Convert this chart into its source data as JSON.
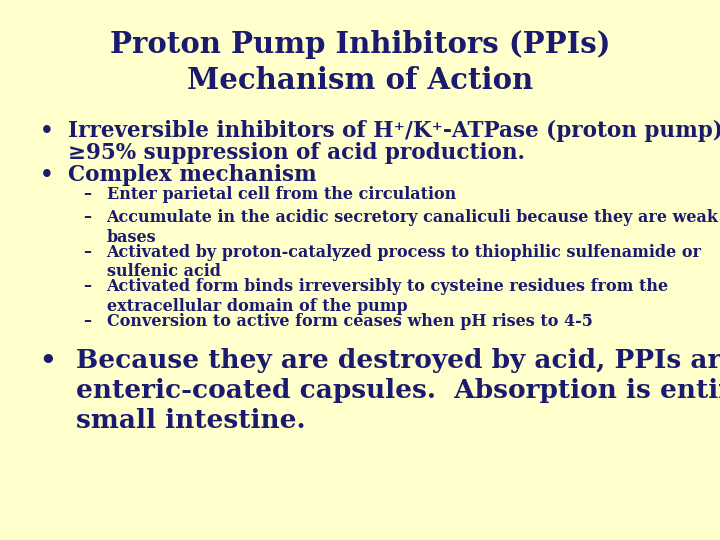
{
  "title_line1": "Proton Pump Inhibitors (PPIs)",
  "title_line2": "Mechanism of Action",
  "background_color": "#FFFFCC",
  "title_color": "#1a1a6e",
  "text_color": "#1a1a6e",
  "title_fontsize": 21,
  "bullet_fontsize": 15.5,
  "sub_fontsize": 11.5,
  "big_bullet_fontsize": 19,
  "bullet1_line1": "Irreversible inhibitors of H⁺/K⁺-ATPase (proton pump).",
  "bullet1_line2": "≥95% suppression of acid production.",
  "bullet2": "Complex mechanism",
  "subbullets": [
    "Enter parietal cell from the circulation",
    "Accumulate in the acidic secretory canaliculi because they are weak\nbases",
    "Activated by proton-catalyzed process to thiophilic sulfenamide or\nsulfenic acid",
    "Activated form binds irreversibly to cysteine residues from the\nextracellular domain of the pump",
    "Conversion to active form ceases when pH rises to 4-5"
  ],
  "bullet3_line1": "Because they are destroyed by acid, PPIs are formulated in",
  "bullet3_line2": "enteric-coated capsules.  Absorption is entirely from the",
  "bullet3_line3": "small intestine."
}
